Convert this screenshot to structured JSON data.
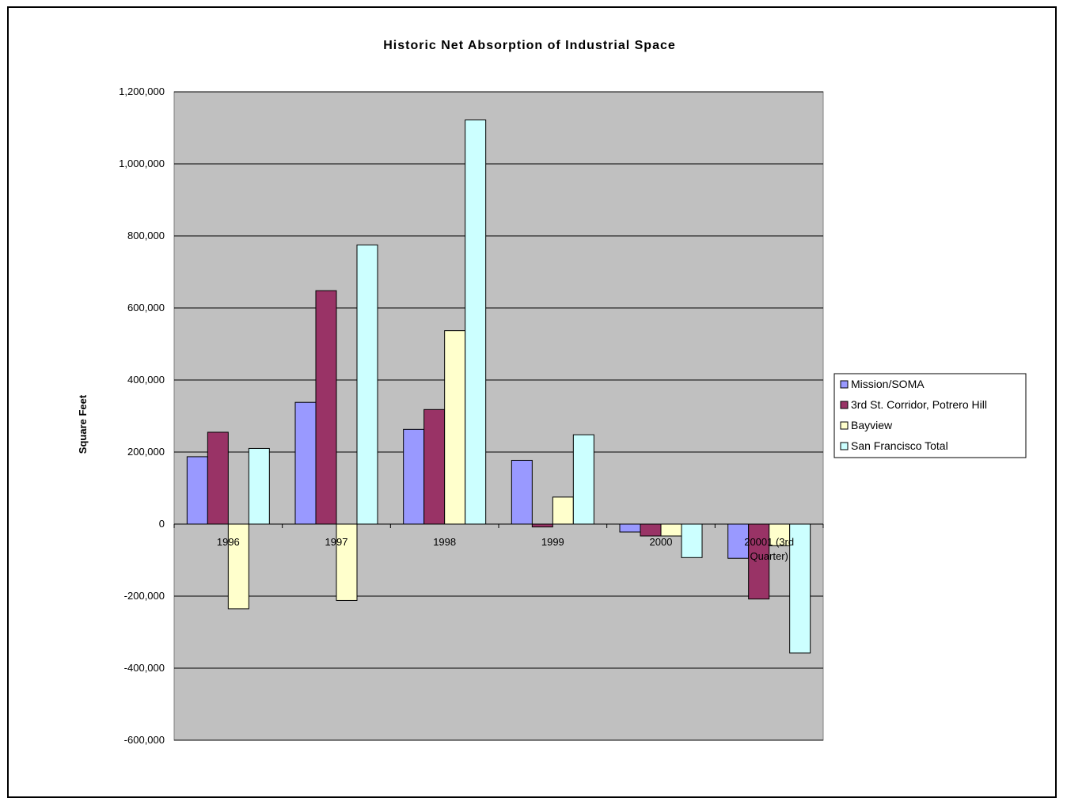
{
  "chart_data": {
    "type": "bar",
    "title": "Historic Net Absorption of Industrial Space",
    "xlabel": "",
    "ylabel": "Square Feet",
    "ylim": [
      -600000,
      1200000
    ],
    "ytick_step": 200000,
    "ytick_labels": [
      "1,200,000",
      "1,000,000",
      "800,000",
      "600,000",
      "400,000",
      "200,000",
      "0",
      "-200,000",
      "-400,000",
      "-600,000"
    ],
    "grid": true,
    "legend_position": "right",
    "categories": [
      "1996",
      "1997",
      "1998",
      "1999",
      "2000",
      "20001 (3rd Quarter)"
    ],
    "category_lines": [
      [
        "1996"
      ],
      [
        "1997"
      ],
      [
        "1998"
      ],
      [
        "1999"
      ],
      [
        "2000"
      ],
      [
        "20001 (3rd",
        "Quarter)"
      ]
    ],
    "series": [
      {
        "name": "Mission/SOMA",
        "color": "#9999FF",
        "values": [
          187000,
          338000,
          263000,
          177000,
          -22000,
          -95000
        ]
      },
      {
        "name": "3rd St. Corridor, Potrero Hill",
        "color": "#993366",
        "values": [
          255000,
          648000,
          318000,
          -8000,
          -33000,
          -208000
        ]
      },
      {
        "name": "Bayview",
        "color": "#FFFFCC",
        "values": [
          -235000,
          -212000,
          537000,
          75000,
          -33000,
          -60000
        ]
      },
      {
        "name": "San Francisco Total",
        "color": "#CCFFFF",
        "values": [
          210000,
          775000,
          1122000,
          248000,
          -93000,
          -358000
        ]
      }
    ],
    "plot_background": "#C0C0C0"
  }
}
